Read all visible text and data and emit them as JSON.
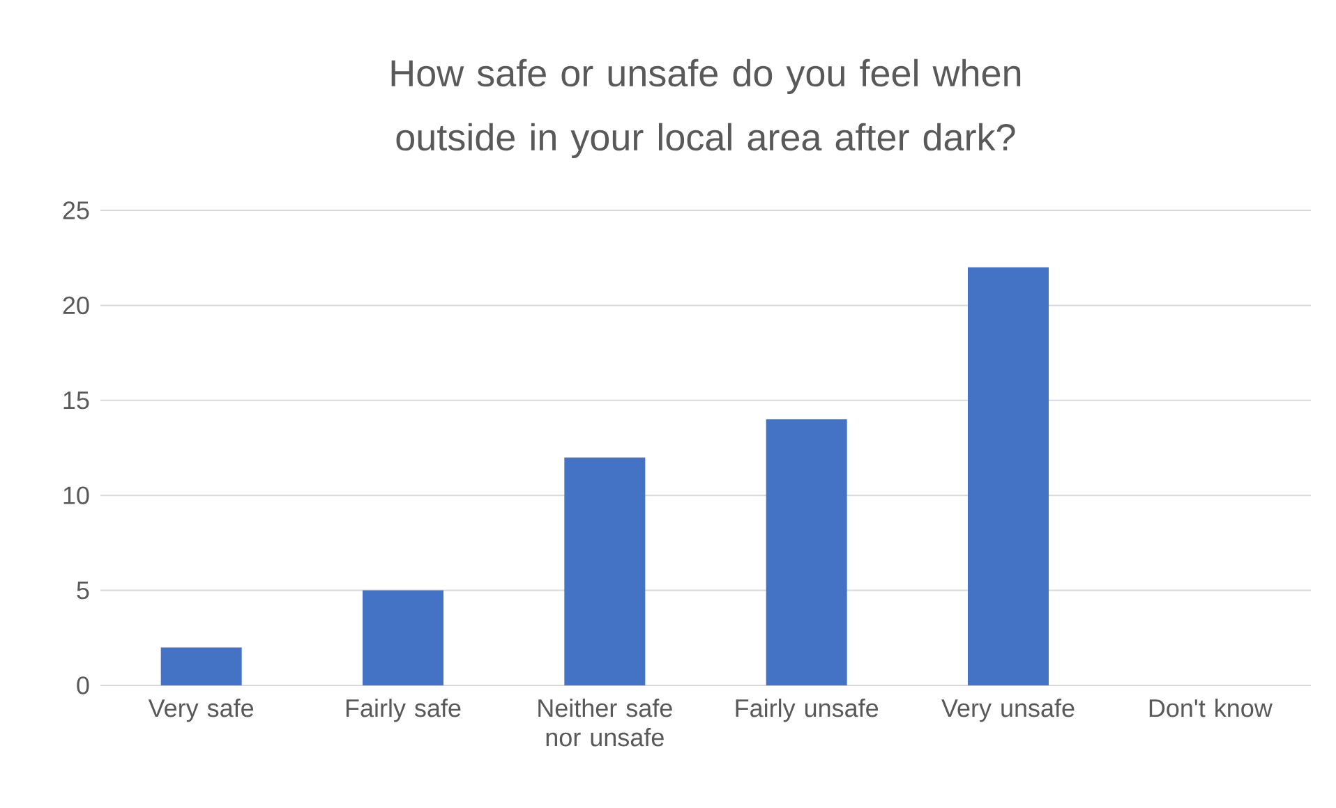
{
  "chart_data": {
    "type": "bar",
    "title": "How safe or unsafe do you feel when outside in your local area after dark?",
    "categories": [
      "Very safe",
      "Fairly safe",
      "Neither safe nor unsafe",
      "Fairly unsafe",
      "Very unsafe",
      "Don't know"
    ],
    "values": [
      2,
      5,
      12,
      14,
      22,
      0
    ],
    "color": "#4472c4",
    "ylim": [
      0,
      25
    ],
    "yticks": [
      0,
      5,
      10,
      15,
      20,
      25
    ],
    "grid": "y"
  }
}
